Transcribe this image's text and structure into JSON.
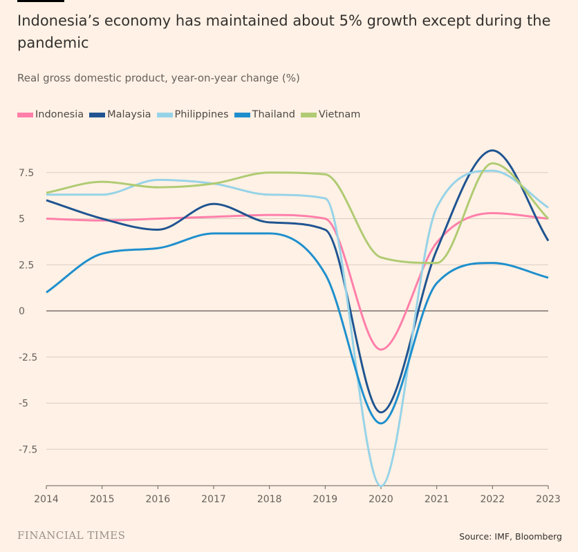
{
  "header": {
    "title": "Indonesia’s economy has maintained about 5% growth except during the pandemic",
    "subtitle": "Real gross domestic product, year-on-year change (%)"
  },
  "footer": {
    "logo": "FINANCIAL TIMES",
    "source": "Source: IMF, Bloomberg"
  },
  "colors": {
    "background": "#fff1e5"
  },
  "chart_data": {
    "type": "line",
    "x": [
      2014,
      2015,
      2016,
      2017,
      2018,
      2019,
      2020,
      2021,
      2022,
      2023
    ],
    "xlim": [
      2014,
      2023
    ],
    "ylim": [
      -9.5,
      9.5
    ],
    "yticks": [
      7.5,
      5,
      2.5,
      0,
      -2.5,
      -5,
      -7.5
    ],
    "ytick_labels": [
      "7.5",
      "5",
      "2.5",
      "0",
      "-2.5",
      "-5",
      "-7.5"
    ],
    "xtick_labels": [
      "2014",
      "2015",
      "2016",
      "2017",
      "2018",
      "2019",
      "2020",
      "2021",
      "2022",
      "2023"
    ],
    "grid": true,
    "legend": "top-left",
    "series": [
      {
        "name": "Indonesia",
        "color": "#ff7faa",
        "values": [
          5.0,
          4.9,
          5.0,
          5.1,
          5.2,
          5.0,
          -2.1,
          3.7,
          5.3,
          5.0
        ]
      },
      {
        "name": "Malaysia",
        "color": "#1f5491",
        "values": [
          6.0,
          5.0,
          4.4,
          5.8,
          4.8,
          4.4,
          -5.5,
          3.3,
          8.7,
          3.8
        ]
      },
      {
        "name": "Philippines",
        "color": "#96d3e8",
        "values": [
          6.3,
          6.3,
          7.1,
          6.9,
          6.3,
          6.1,
          -9.5,
          5.6,
          7.6,
          5.6
        ]
      },
      {
        "name": "Thailand",
        "color": "#1e8fcd",
        "values": [
          1.0,
          3.1,
          3.4,
          4.2,
          4.2,
          2.0,
          -6.1,
          1.5,
          2.6,
          1.8
        ]
      },
      {
        "name": "Vietnam",
        "color": "#b0cb73",
        "values": [
          6.4,
          7.0,
          6.7,
          6.9,
          7.5,
          7.4,
          2.9,
          2.6,
          8.0,
          5.0
        ]
      }
    ]
  }
}
